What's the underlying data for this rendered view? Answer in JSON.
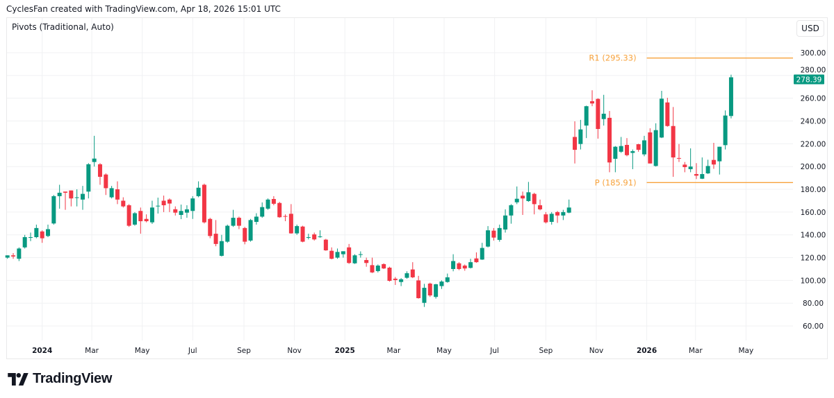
{
  "header": {
    "credit": "CyclesFan created with TradingView.com, Apr 18, 2026 15:01 UTC"
  },
  "indicator": {
    "label": "Pivots (Traditional, Auto)"
  },
  "currency_button": {
    "label": "USD"
  },
  "footer": {
    "logo_text": "TradingView"
  },
  "colors": {
    "up": "#089981",
    "down": "#f23645",
    "pivot": "#f7a23b",
    "grid": "#f0f1f3",
    "text": "#131722"
  },
  "chart_data": {
    "type": "candlestick",
    "interval": "weekly",
    "currency": "USD",
    "ylim": [
      50,
      310
    ],
    "y_ticks": [
      "60.00",
      "80.00",
      "100.00",
      "120.00",
      "140.00",
      "160.00",
      "180.00",
      "200.00",
      "220.00",
      "240.00",
      "260.00",
      "280.00",
      "300.00"
    ],
    "x_ticks": [
      {
        "label": "2024",
        "date": "2024-01-01",
        "bold": true
      },
      {
        "label": "Mar",
        "date": "2024-03-01"
      },
      {
        "label": "May",
        "date": "2024-05-01"
      },
      {
        "label": "Jul",
        "date": "2024-07-01"
      },
      {
        "label": "Sep",
        "date": "2024-09-01"
      },
      {
        "label": "Nov",
        "date": "2024-11-01"
      },
      {
        "label": "2025",
        "date": "2025-01-01",
        "bold": true
      },
      {
        "label": "Mar",
        "date": "2025-03-01"
      },
      {
        "label": "May",
        "date": "2025-05-01"
      },
      {
        "label": "Jul",
        "date": "2025-07-01"
      },
      {
        "label": "Sep",
        "date": "2025-09-01"
      },
      {
        "label": "Nov",
        "date": "2025-11-01"
      },
      {
        "label": "2026",
        "date": "2026-01-01",
        "bold": true
      },
      {
        "label": "Mar",
        "date": "2026-03-01"
      },
      {
        "label": "May",
        "date": "2026-05-01"
      }
    ],
    "last_price": {
      "value": 278.39,
      "label": "278.39"
    },
    "pivots": [
      {
        "name": "R1",
        "value": 295.33,
        "label": "R1 (295.33)",
        "from": "2026-01-01"
      },
      {
        "name": "P",
        "value": 185.91,
        "label": "P (185.91)",
        "from": "2026-01-01"
      }
    ],
    "candles_columns": [
      "date",
      "open",
      "high",
      "low",
      "close"
    ],
    "candles": [
      [
        "2023-11-20",
        120,
        122,
        119,
        122
      ],
      [
        "2023-11-27",
        122,
        124,
        119,
        121
      ],
      [
        "2023-12-04",
        119,
        129,
        117,
        128
      ],
      [
        "2023-12-11",
        129,
        140,
        128,
        138
      ],
      [
        "2023-12-18",
        138,
        142,
        134.5,
        138
      ],
      [
        "2023-12-25",
        138,
        149,
        137,
        146
      ],
      [
        "2024-01-01",
        143,
        144,
        133,
        137
      ],
      [
        "2024-01-08",
        139,
        149,
        138,
        145
      ],
      [
        "2024-01-15",
        150,
        175,
        149,
        174
      ],
      [
        "2024-01-22",
        174,
        184,
        163,
        177
      ],
      [
        "2024-01-29",
        178,
        178,
        162,
        177
      ],
      [
        "2024-02-05",
        179,
        179,
        165,
        172
      ],
      [
        "2024-02-12",
        173,
        180,
        165,
        173
      ],
      [
        "2024-02-19",
        171,
        183,
        162,
        176
      ],
      [
        "2024-02-26",
        178,
        203,
        172,
        202
      ],
      [
        "2024-03-04",
        204,
        227,
        200,
        207
      ],
      [
        "2024-03-11",
        202,
        203,
        184,
        191
      ],
      [
        "2024-03-18",
        193,
        194,
        175,
        181
      ],
      [
        "2024-03-25",
        173,
        183,
        172,
        181
      ],
      [
        "2024-04-01",
        180,
        187,
        167,
        171
      ],
      [
        "2024-04-08",
        170,
        173,
        164,
        165
      ],
      [
        "2024-04-15",
        166,
        167,
        147,
        148
      ],
      [
        "2024-04-22",
        149,
        160,
        148,
        159
      ],
      [
        "2024-04-29",
        161,
        164,
        141,
        152
      ],
      [
        "2024-05-06",
        154,
        158,
        151,
        152
      ],
      [
        "2024-05-13",
        151,
        170,
        149.6,
        164
      ],
      [
        "2024-05-20",
        165,
        172.7,
        158.7,
        165.6
      ],
      [
        "2024-05-27",
        170,
        174.5,
        160,
        166
      ],
      [
        "2024-06-03",
        171,
        172,
        160,
        167.5
      ],
      [
        "2024-06-10",
        162.5,
        165,
        157,
        159.5
      ],
      [
        "2024-06-17",
        157.5,
        166.6,
        153.8,
        161
      ],
      [
        "2024-06-24",
        159.5,
        166,
        155,
        162.4
      ],
      [
        "2024-07-01",
        161,
        174,
        154,
        172
      ],
      [
        "2024-07-08",
        174,
        187,
        173,
        181.4
      ],
      [
        "2024-07-15",
        184,
        185,
        150,
        151
      ],
      [
        "2024-07-22",
        154,
        155,
        137,
        139
      ],
      [
        "2024-07-29",
        141,
        153,
        130,
        132
      ],
      [
        "2024-08-05",
        121.6,
        140,
        121,
        134.5
      ],
      [
        "2024-08-12",
        134,
        149,
        133,
        148
      ],
      [
        "2024-08-19",
        148,
        162,
        147,
        155
      ],
      [
        "2024-08-26",
        155,
        156,
        145,
        148
      ],
      [
        "2024-09-02",
        146,
        147,
        131.7,
        134
      ],
      [
        "2024-09-09",
        135,
        154,
        134,
        153
      ],
      [
        "2024-09-16",
        151.4,
        159,
        149,
        156
      ],
      [
        "2024-09-23",
        156,
        168.5,
        155,
        164.4
      ],
      [
        "2024-09-30",
        163,
        172,
        162,
        171
      ],
      [
        "2024-10-07",
        171.5,
        174,
        166,
        167.3
      ],
      [
        "2024-10-14",
        168,
        169,
        155,
        155.5
      ],
      [
        "2024-10-21",
        156.5,
        158,
        152,
        156
      ],
      [
        "2024-10-28",
        158.5,
        167,
        141,
        141.3
      ],
      [
        "2024-11-04",
        141.3,
        149,
        140,
        147.7
      ],
      [
        "2024-11-11",
        147.3,
        148,
        133.5,
        134
      ],
      [
        "2024-11-18",
        138,
        141,
        136,
        138
      ],
      [
        "2024-11-25",
        140.4,
        142,
        135,
        136
      ],
      [
        "2024-12-02",
        138.3,
        144,
        137.5,
        138.6
      ],
      [
        "2024-12-09",
        135.8,
        136.5,
        126,
        126.4
      ],
      [
        "2024-12-16",
        126,
        129,
        118.5,
        119
      ],
      [
        "2024-12-23",
        120,
        128,
        119,
        125
      ],
      [
        "2024-12-30",
        123,
        125.6,
        120,
        125.6
      ],
      [
        "2025-01-06",
        129,
        132,
        114.5,
        115.3
      ],
      [
        "2025-01-13",
        115,
        123,
        114.5,
        122
      ],
      [
        "2025-01-20",
        123,
        125.5,
        120,
        123
      ],
      [
        "2025-01-27",
        117.9,
        120,
        112,
        115.3
      ],
      [
        "2025-02-03",
        113.4,
        120,
        106.5,
        107
      ],
      [
        "2025-02-10",
        108.2,
        114,
        107,
        113
      ],
      [
        "2025-02-17",
        114.3,
        115,
        110,
        110.5
      ],
      [
        "2025-02-24",
        111.2,
        112,
        99,
        99.6
      ],
      [
        "2025-03-03",
        101.5,
        103,
        96,
        100.3
      ],
      [
        "2025-03-10",
        98.6,
        102,
        95,
        101
      ],
      [
        "2025-03-17",
        102.3,
        108,
        101.5,
        106.3
      ],
      [
        "2025-03-24",
        109.6,
        116,
        102,
        102.7
      ],
      [
        "2025-03-31",
        100,
        104,
        84,
        84.4
      ],
      [
        "2025-04-07",
        80.3,
        97,
        76.7,
        93.5
      ],
      [
        "2025-04-14",
        97.2,
        98,
        85.5,
        86.8
      ],
      [
        "2025-04-21",
        85.5,
        97,
        84,
        96.6
      ],
      [
        "2025-04-28",
        95,
        100,
        92.5,
        99
      ],
      [
        "2025-05-05",
        98.6,
        106,
        98,
        102.7
      ],
      [
        "2025-05-12",
        110,
        123,
        108,
        117
      ],
      [
        "2025-05-19",
        115,
        116,
        109,
        110
      ],
      [
        "2025-05-26",
        113,
        114,
        108.5,
        110.5
      ],
      [
        "2025-06-02",
        111,
        119,
        110.5,
        116
      ],
      [
        "2025-06-09",
        119.3,
        124.6,
        115.5,
        116
      ],
      [
        "2025-06-16",
        118.3,
        133,
        118,
        128.5
      ],
      [
        "2025-06-23",
        129.7,
        147.7,
        129,
        144
      ],
      [
        "2025-06-30",
        143.7,
        146,
        135,
        137.6
      ],
      [
        "2025-07-07",
        135.6,
        149,
        134,
        146
      ],
      [
        "2025-07-14",
        144.7,
        162.4,
        142,
        157
      ],
      [
        "2025-07-21",
        157,
        167,
        149.8,
        166
      ],
      [
        "2025-07-28",
        168.6,
        182.5,
        167,
        171.7
      ],
      [
        "2025-08-04",
        174.4,
        178,
        157.5,
        172
      ],
      [
        "2025-08-11",
        169.7,
        186.5,
        169,
        177.4
      ],
      [
        "2025-08-18",
        176,
        177,
        158,
        167
      ],
      [
        "2025-08-25",
        166,
        171,
        161.5,
        162.4
      ],
      [
        "2025-09-01",
        158,
        160,
        150,
        151
      ],
      [
        "2025-09-08",
        151.4,
        160,
        149,
        158.5
      ],
      [
        "2025-09-15",
        160,
        161,
        150.5,
        157
      ],
      [
        "2025-09-22",
        157,
        162,
        153,
        160
      ],
      [
        "2025-09-29",
        159.5,
        171,
        159,
        164
      ],
      [
        "2025-10-06",
        226,
        239.7,
        202.7,
        214.7
      ],
      [
        "2025-10-13",
        219.8,
        241,
        215,
        232.6
      ],
      [
        "2025-10-20",
        236,
        253.5,
        225,
        253
      ],
      [
        "2025-10-27",
        257.4,
        267,
        253,
        255.4
      ],
      [
        "2025-11-03",
        259.4,
        260,
        224.5,
        233
      ],
      [
        "2025-11-10",
        241.7,
        263,
        236,
        246.4
      ],
      [
        "2025-11-17",
        242.8,
        248.8,
        195,
        203.6
      ],
      [
        "2025-11-24",
        206.8,
        218,
        195,
        217.4
      ],
      [
        "2025-12-01",
        213,
        226,
        212,
        218
      ],
      [
        "2025-12-08",
        219,
        225,
        209,
        210
      ],
      [
        "2025-12-15",
        212,
        215,
        197.7,
        213.5
      ],
      [
        "2025-12-22",
        219.6,
        220,
        213,
        214.7
      ],
      [
        "2025-12-29",
        210.7,
        227,
        209,
        223
      ],
      [
        "2026-01-05",
        230,
        233.6,
        202.7,
        202.7
      ],
      [
        "2026-01-12",
        200.5,
        238,
        200,
        232
      ],
      [
        "2026-01-19",
        225.5,
        266.5,
        225,
        259.6
      ],
      [
        "2026-01-26",
        256.3,
        260.4,
        235,
        235.6
      ],
      [
        "2026-02-02",
        235.6,
        252.3,
        191,
        208
      ],
      [
        "2026-02-09",
        207.5,
        219.8,
        204,
        207.2
      ],
      [
        "2026-02-16",
        201.7,
        204,
        195,
        199.5
      ],
      [
        "2026-02-23",
        197.7,
        216,
        195,
        200
      ],
      [
        "2026-03-02",
        193.4,
        203,
        189,
        192
      ],
      [
        "2026-03-09",
        189.3,
        208,
        189,
        193.4
      ],
      [
        "2026-03-16",
        194,
        206,
        193.5,
        200.5
      ],
      [
        "2026-03-23",
        205.8,
        220.8,
        198,
        201.8
      ],
      [
        "2026-03-30",
        204.6,
        217.4,
        193,
        217.4
      ],
      [
        "2026-04-06",
        218.8,
        249.3,
        215,
        244.8
      ],
      [
        "2026-04-13",
        244.4,
        280.7,
        242.3,
        278.39
      ]
    ]
  }
}
